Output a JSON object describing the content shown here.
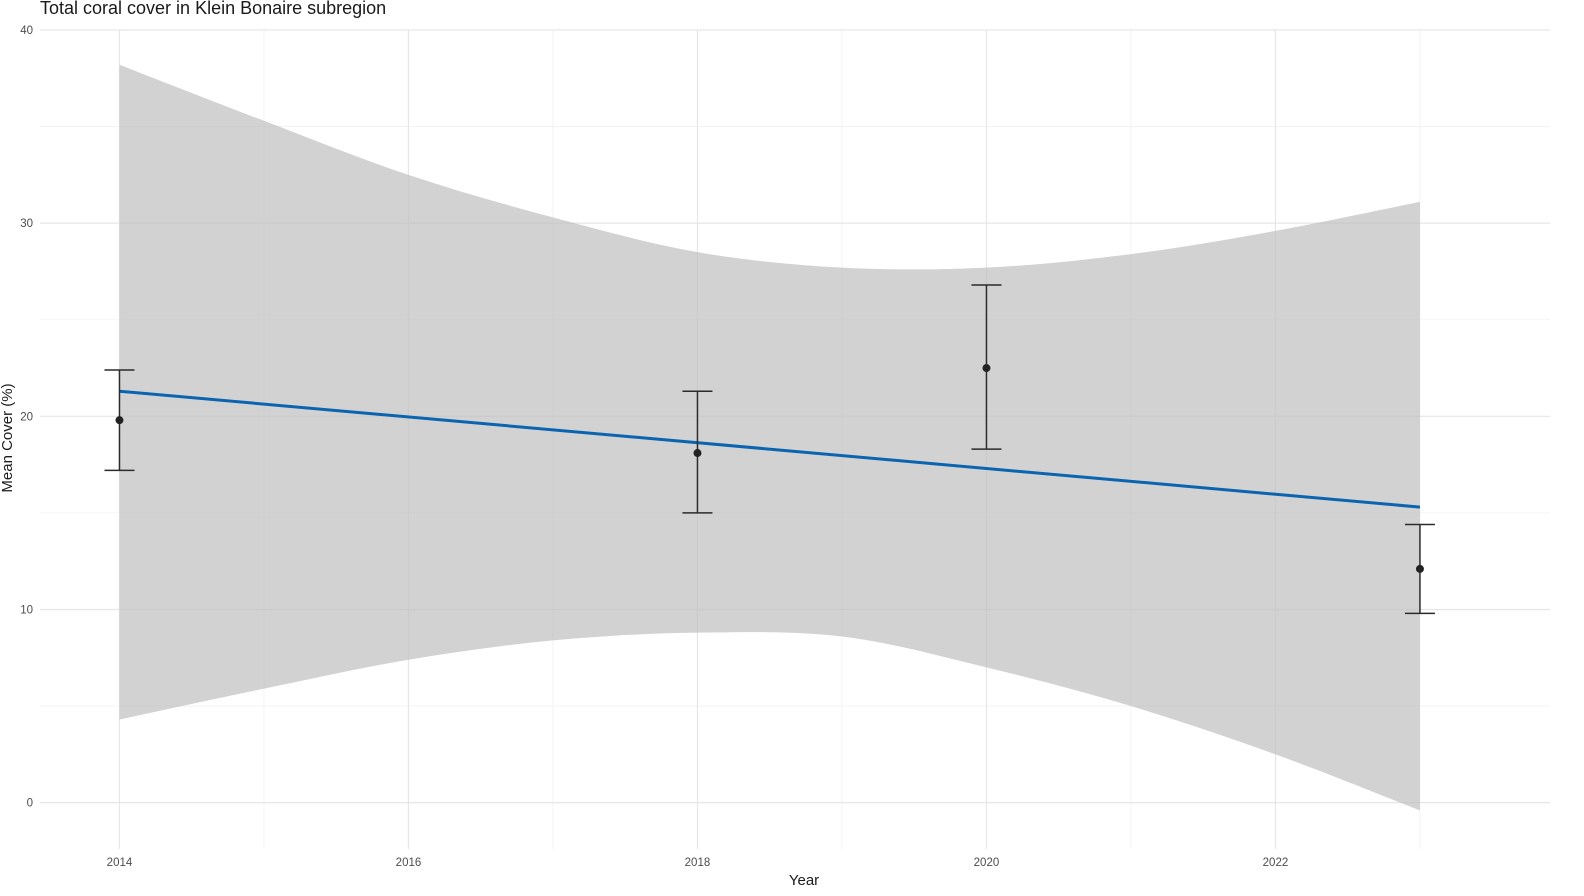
{
  "chart_data": {
    "type": "line",
    "title": "Total coral cover in Klein Bonaire subregion",
    "xlabel": "Year",
    "ylabel": "Mean Cover (%)",
    "xlim": [
      2013.45,
      2023.9
    ],
    "ylim": [
      -2.4,
      40
    ],
    "x_ticks": [
      2014,
      2016,
      2018,
      2020,
      2022
    ],
    "y_ticks": [
      0,
      10,
      20,
      30,
      40
    ],
    "grid": true,
    "legend": "none",
    "observed": {
      "x": [
        2014,
        2018,
        2020,
        2023
      ],
      "mean": [
        19.8,
        18.1,
        22.5,
        12.1
      ],
      "lower": [
        17.2,
        15.0,
        18.3,
        9.8
      ],
      "upper": [
        22.4,
        21.3,
        26.8,
        14.4
      ]
    },
    "trend": {
      "x": [
        2014,
        2023
      ],
      "y": [
        21.3,
        15.3
      ]
    },
    "confidence_band": {
      "x": [
        2014,
        2015,
        2016,
        2017,
        2018,
        2019,
        2020,
        2021,
        2022,
        2023
      ],
      "upper": [
        38.2,
        35.3,
        32.5,
        30.3,
        28.5,
        27.7,
        27.7,
        28.4,
        29.6,
        31.1
      ],
      "lower": [
        4.3,
        5.9,
        7.4,
        8.4,
        8.8,
        8.6,
        7.0,
        5.0,
        2.5,
        -0.4
      ]
    },
    "colors": {
      "trend_line": "#0a64b0",
      "band": "#bfbfbf",
      "points": "#222222",
      "grid": "#e6e6e6"
    }
  }
}
